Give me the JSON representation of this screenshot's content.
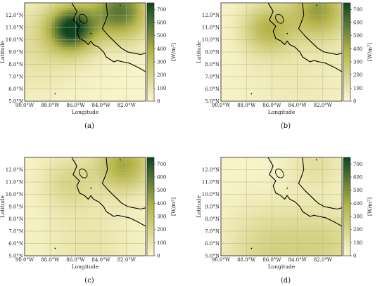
{
  "chart_data": [
    {
      "type": "heatmap",
      "caption": "(a)",
      "xlabel": "Longitude",
      "ylabel": "Latitude",
      "xlim": [
        -90.0,
        -80.5
      ],
      "ylim": [
        5.0,
        13.0
      ],
      "x_ticks": [
        "90.0°W",
        "88.0°W",
        "86.0°W",
        "84.0°W",
        "82.0°W"
      ],
      "y_ticks": [
        "5.0°N",
        "6.0°N",
        "7.0°N",
        "8.0°N",
        "9.0°N",
        "10.0°N",
        "11.0°N",
        "12.0°N"
      ],
      "colorbar": {
        "label": "[W/m²]",
        "range": [
          0,
          750
        ],
        "ticks": [
          "0",
          "100",
          "200",
          "300",
          "400",
          "500",
          "600",
          "700"
        ]
      },
      "hotspots": [
        {
          "lon": -86.3,
          "lat": 10.9,
          "value": 720,
          "spread": 1.3
        },
        {
          "lon": -82.5,
          "lat": 12.3,
          "value": 560,
          "spread": 1.6
        },
        {
          "lon": -89.0,
          "lat": 9.5,
          "value": 120,
          "spread": 2.5
        }
      ]
    },
    {
      "type": "heatmap",
      "caption": "(b)",
      "xlabel": "Longitude",
      "ylabel": "Latitude",
      "xlim": [
        -90.0,
        -80.5
      ],
      "ylim": [
        5.0,
        13.0
      ],
      "x_ticks": [
        "90.0°W",
        "88.0°W",
        "86.0°W",
        "84.0°W",
        "82.0°W"
      ],
      "y_ticks": [
        "5.0°N",
        "6.0°N",
        "7.0°N",
        "8.0°N",
        "9.0°N",
        "10.0°N",
        "11.0°N",
        "12.0°N"
      ],
      "colorbar": {
        "label": "[W/m²]",
        "range": [
          0,
          750
        ],
        "ticks": [
          "0",
          "100",
          "200",
          "300",
          "400",
          "500",
          "600",
          "700"
        ]
      },
      "hotspots": [
        {
          "lon": -86.3,
          "lat": 10.9,
          "value": 340,
          "spread": 1.4
        },
        {
          "lon": -82.3,
          "lat": 12.4,
          "value": 420,
          "spread": 1.6
        },
        {
          "lon": -84.0,
          "lat": 7.0,
          "value": 60,
          "spread": 3.0
        }
      ]
    },
    {
      "type": "heatmap",
      "caption": "(c)",
      "xlabel": "Longitude",
      "ylabel": "Latitude",
      "xlim": [
        -90.0,
        -80.5
      ],
      "ylim": [
        5.0,
        13.0
      ],
      "x_ticks": [
        "90.0°W",
        "88.0°W",
        "86.0°W",
        "84.0°W",
        "82.0°W"
      ],
      "y_ticks": [
        "5.0°N",
        "6.0°N",
        "7.0°N",
        "8.0°N",
        "9.0°N",
        "10.0°N",
        "11.0°N",
        "12.0°N"
      ],
      "colorbar": {
        "label": "[W/m²]",
        "range": [
          0,
          750
        ],
        "ticks": [
          "0",
          "100",
          "200",
          "300",
          "400",
          "500",
          "600",
          "700"
        ]
      },
      "hotspots": [
        {
          "lon": -86.5,
          "lat": 11.0,
          "value": 170,
          "spread": 1.5
        },
        {
          "lon": -82.2,
          "lat": 12.4,
          "value": 400,
          "spread": 1.5
        },
        {
          "lon": -85.0,
          "lat": 6.0,
          "value": 90,
          "spread": 2.5
        }
      ]
    },
    {
      "type": "heatmap",
      "caption": "(d)",
      "xlabel": "Longitude",
      "ylabel": "Latitude",
      "xlim": [
        -90.0,
        -80.5
      ],
      "ylim": [
        5.0,
        13.0
      ],
      "x_ticks": [
        "90.0°W",
        "88.0°W",
        "86.0°W",
        "84.0°W",
        "82.0°W"
      ],
      "y_ticks": [
        "5.0°N",
        "6.0°N",
        "7.0°N",
        "8.0°N",
        "9.0°N",
        "10.0°N",
        "11.0°N",
        "12.0°N"
      ],
      "colorbar": {
        "label": "[W/m²]",
        "range": [
          0,
          750
        ],
        "ticks": [
          "0",
          "100",
          "200",
          "300",
          "400",
          "500",
          "600",
          "700"
        ]
      },
      "hotspots": [
        {
          "lon": -86.0,
          "lat": 5.5,
          "value": 190,
          "spread": 2.5
        },
        {
          "lon": -81.5,
          "lat": 6.0,
          "value": 150,
          "spread": 2.0
        },
        {
          "lon": -82.5,
          "lat": 12.5,
          "value": 120,
          "spread": 1.5
        }
      ]
    }
  ],
  "colors": {
    "low": "#fbf6cf",
    "mid": "#b7b64a",
    "high": "#0f4421",
    "coast": "#000000",
    "grid": "#bdb48e"
  },
  "coastline": [
    [
      [
        -86.3,
        13.0
      ],
      [
        -85.9,
        12.3
      ],
      [
        -86.2,
        11.6
      ],
      [
        -85.7,
        11.1
      ],
      [
        -85.9,
        10.7
      ],
      [
        -85.7,
        10.1
      ],
      [
        -85.3,
        9.9
      ],
      [
        -85.0,
        9.6
      ],
      [
        -84.8,
        9.9
      ],
      [
        -84.6,
        9.6
      ],
      [
        -84.2,
        9.4
      ],
      [
        -83.8,
        9.0
      ],
      [
        -83.6,
        8.6
      ],
      [
        -83.3,
        8.4
      ],
      [
        -83.0,
        8.2
      ],
      [
        -82.7,
        8.3
      ],
      [
        -82.3,
        8.2
      ],
      [
        -81.8,
        8.1
      ],
      [
        -81.4,
        7.9
      ],
      [
        -81.0,
        7.7
      ],
      [
        -80.5,
        7.4
      ]
    ],
    [
      [
        -83.6,
        13.0
      ],
      [
        -83.5,
        12.0
      ],
      [
        -83.7,
        11.4
      ],
      [
        -83.9,
        10.9
      ],
      [
        -83.4,
        10.3
      ],
      [
        -82.8,
        9.7
      ],
      [
        -82.4,
        9.3
      ],
      [
        -81.9,
        9.0
      ],
      [
        -81.4,
        8.9
      ],
      [
        -80.9,
        8.8
      ],
      [
        -80.5,
        8.9
      ]
    ]
  ],
  "islands": [
    {
      "lon": -82.5,
      "lat": 12.8
    },
    {
      "lon": -87.6,
      "lat": 5.6
    },
    {
      "lon": -84.8,
      "lat": 10.5
    }
  ]
}
